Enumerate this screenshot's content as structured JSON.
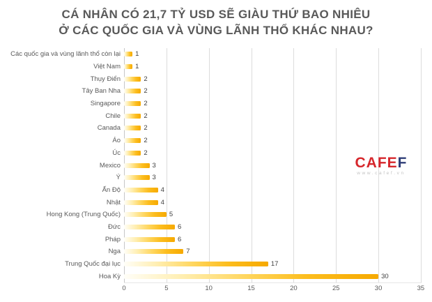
{
  "title": {
    "line1": "CÁ NHÂN CÓ 21,7 TỶ USD SẼ GIÀU THỨ BAO NHIÊU",
    "line2": "Ở CÁC QUỐC GIA VÀ VÙNG LÃNH THỔ KHÁC NHAU?"
  },
  "chart_data": {
    "type": "bar",
    "orientation": "horizontal",
    "title": "CÁ NHÂN CÓ 21,7 TỶ USD SẼ GIÀU THỨ BAO NHIÊU Ở CÁC QUỐC GIA VÀ VÙNG LÃNH THỔ KHÁC NHAU?",
    "categories": [
      "Các quốc gia và vùng lãnh thổ còn lại",
      "Việt Nam",
      "Thụy Điển",
      "Tây Ban Nha",
      "Singapore",
      "Chile",
      "Canada",
      "Áo",
      "Úc",
      "Mexico",
      "Ý",
      "Ấn Độ",
      "Nhật",
      "Hong Kong (Trung Quốc)",
      "Đức",
      "Pháp",
      "Nga",
      "Trung Quốc đại lục",
      "Hoa Kỳ"
    ],
    "values": [
      1,
      1,
      2,
      2,
      2,
      2,
      2,
      2,
      2,
      3,
      3,
      4,
      4,
      5,
      6,
      6,
      7,
      17,
      30
    ],
    "xlabel": "",
    "ylabel": "",
    "xlim": [
      0,
      35
    ],
    "x_ticks": [
      "0",
      "5",
      "10",
      "15",
      "20",
      "25",
      "30",
      "35"
    ],
    "grid": true,
    "legend": false,
    "data_labels": true,
    "bar_gradient": [
      "#FFFEF8",
      "#FFD65E",
      "#F6A900"
    ]
  },
  "watermark": {
    "brand_red": "CAFE",
    "brand_blue": "F",
    "url": "www.cafef.vn"
  },
  "colors": {
    "title": "#595959",
    "category_label": "#595959",
    "value_label": "#404040",
    "gridline": "#dcdcdc",
    "axis_line": "#c6c6c6",
    "logo_red": "#d6272c",
    "logo_blue": "#2f3e77"
  }
}
